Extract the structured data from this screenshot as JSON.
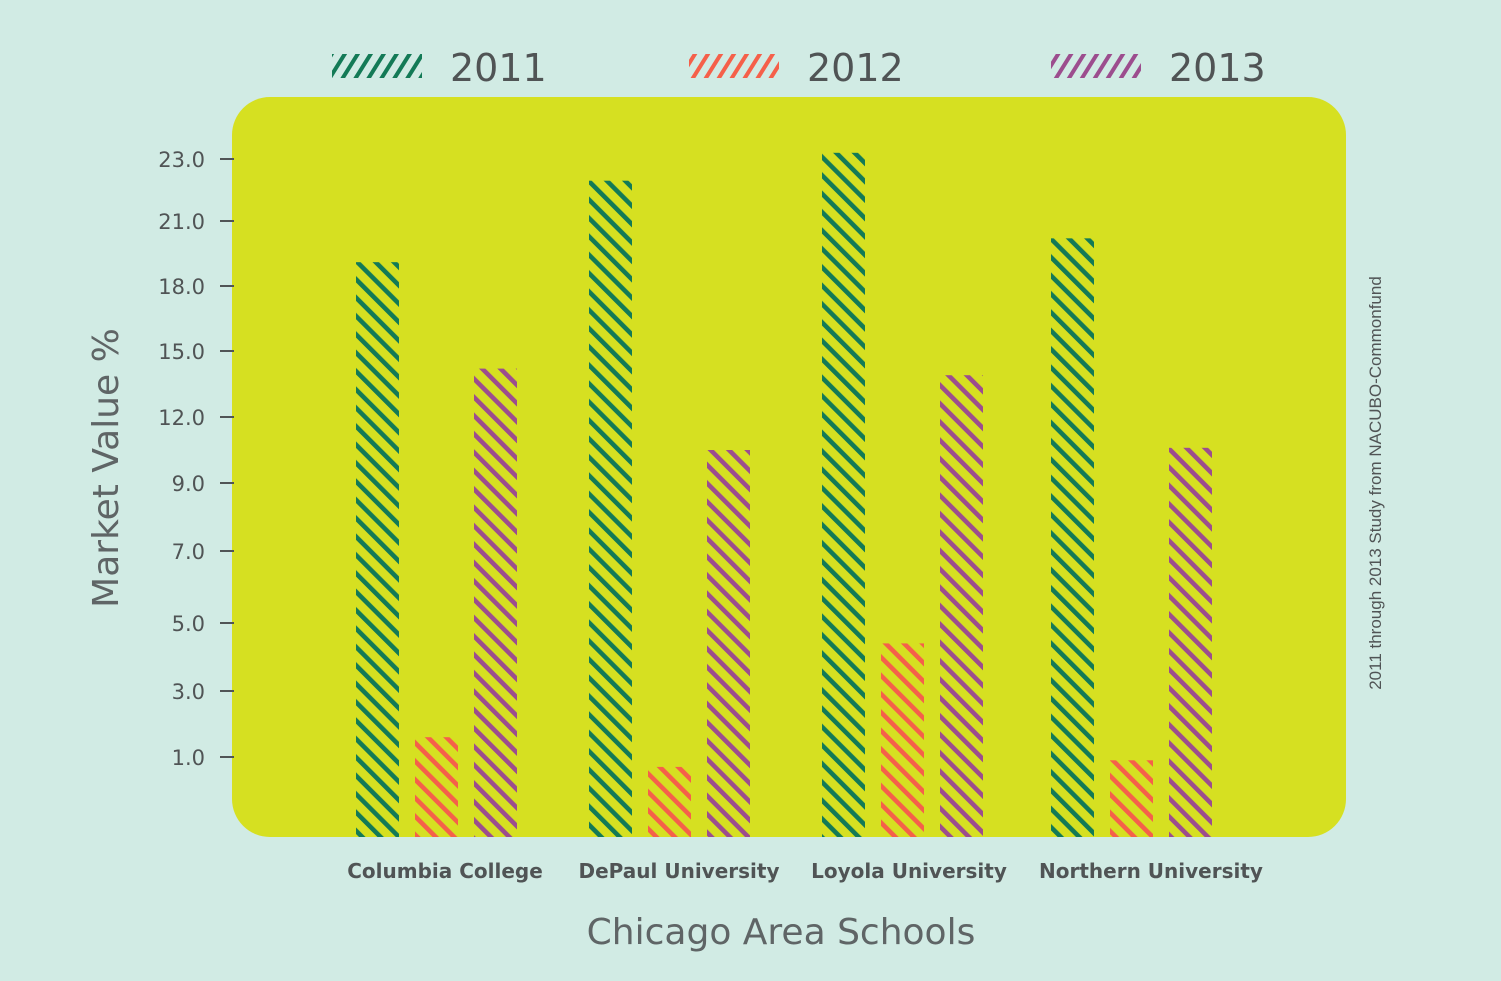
{
  "chart_data": {
    "type": "bar",
    "title": "",
    "xlabel": "Chicago Area Schools",
    "ylabel": "Market Value %",
    "yticks": [
      "1.0",
      "3.0",
      "5.0",
      "7.0",
      "9.0",
      "12.0",
      "15.0",
      "18.0",
      "21.0",
      "23.0"
    ],
    "categories": [
      "Columbia College",
      "DePaul University",
      "Loyola University",
      "Northern University"
    ],
    "series": [
      {
        "name": "2011",
        "color": "#137a56",
        "values": [
          19.1,
          22.3,
          23.2,
          20.2
        ]
      },
      {
        "name": "2012",
        "color": "#f5604a",
        "values": [
          1.6,
          0.7,
          4.4,
          0.9
        ]
      },
      {
        "name": "2013",
        "color": "#9c4d8e",
        "values": [
          14.2,
          10.5,
          13.9,
          10.6
        ]
      }
    ],
    "legend_position": "top",
    "grid": false,
    "plot_background": "#d6e021",
    "source_note": "2011 through 2013 Study from NACUBO-Commonfund"
  }
}
